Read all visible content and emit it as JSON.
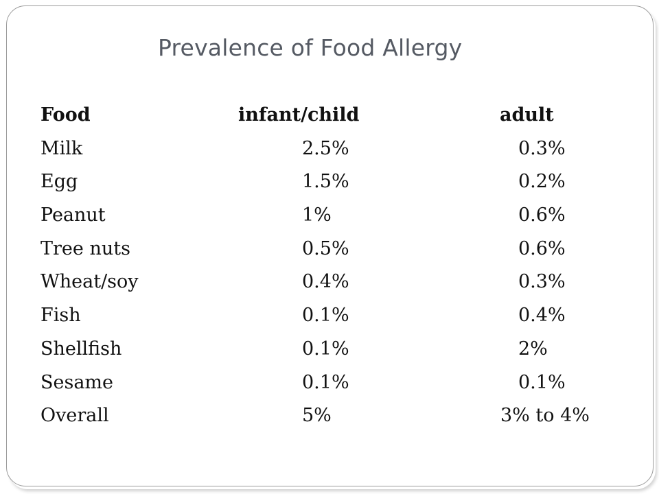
{
  "title": "Prevalence of Food Allergy",
  "table": {
    "headers": {
      "food": "Food",
      "child": "infant/child",
      "adult": "adult"
    },
    "rows": [
      {
        "food": "Milk",
        "child": "2.5%",
        "adult": "0.3%"
      },
      {
        "food": "Egg",
        "child": "1.5%",
        "adult": "0.2%"
      },
      {
        "food": "Peanut",
        "child": "1%",
        "adult": "0.6%"
      },
      {
        "food": "Tree nuts",
        "child": "0.5%",
        "adult": "0.6%"
      },
      {
        "food": "Wheat/soy",
        "child": "0.4%",
        "adult": "0.3%"
      },
      {
        "food": "Fish",
        "child": "0.1%",
        "adult": "0.4%"
      },
      {
        "food": "Shellfish",
        "child": "0.1%",
        "adult": "2%"
      },
      {
        "food": "Sesame",
        "child": "0.1%",
        "adult": "0.1%"
      },
      {
        "food": "Overall",
        "child": "5%",
        "adult": "3% to 4%"
      }
    ]
  }
}
